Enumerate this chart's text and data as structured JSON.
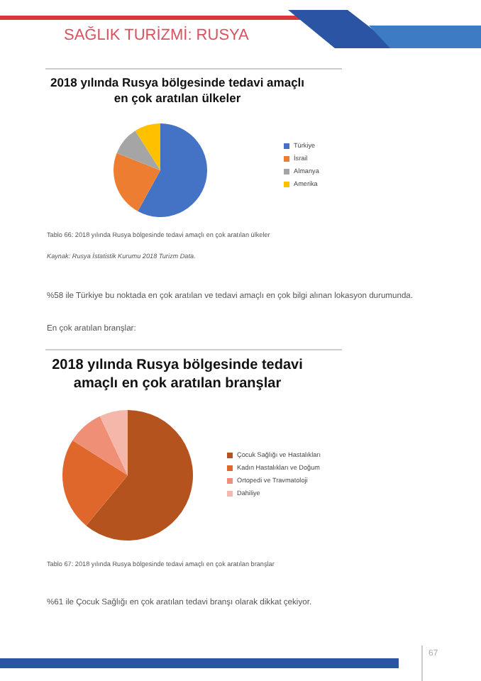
{
  "chart_data": [
    {
      "type": "pie",
      "title": "2018 yılında Rusya bölgesinde tedavi amaçlı en çok aratılan ülkeler",
      "categories": [
        "Türkiye",
        "İsrail",
        "Almanya",
        "Amerika"
      ],
      "values": [
        58,
        23,
        10,
        9
      ],
      "colors": [
        "#4472c4",
        "#ed7d31",
        "#a5a5a5",
        "#ffc000"
      ],
      "legend": "right",
      "annotations": [
        "SAĞLIK TURİZMİ: RUSYA",
        "Tablo 66: 2018 yılında Rusya bölgesinde tedavi amaçlı en çok aratılan ülkeler",
        "Kaynak: Rusya İstatistik Kurumu 2018 Turizm Data.",
        "%58 ile Türkiye bu noktada en çok aratılan ve tedavi amaçlı en çok bilgi alınan lokasyon durumunda.",
        "En çok aratılan branşlar:"
      ]
    },
    {
      "type": "pie",
      "title": "2018 yılında Rusya bölgesinde tedavi amaçlı en çok aratılan branşlar",
      "categories": [
        "Çocuk Sağlığı ve Hastalıkları",
        "Kadın Hastalıkları ve Doğum",
        "Ortopedi ve Travmatoloji",
        "Dahiliye"
      ],
      "values": [
        61,
        23,
        9,
        7
      ],
      "colors": [
        "#b5531f",
        "#e0672c",
        "#ee8f76",
        "#f4b7aa"
      ],
      "legend": "right",
      "annotations": [
        "Tablo 67: 2018 yılında Rusya bölgesinde tedavi amaçlı en çok aratılan branşlar",
        "%61 ile Çocuk Sağlığı en çok aratılan tedavi branşı olarak dikkat çekiyor.",
        "67"
      ]
    }
  ]
}
